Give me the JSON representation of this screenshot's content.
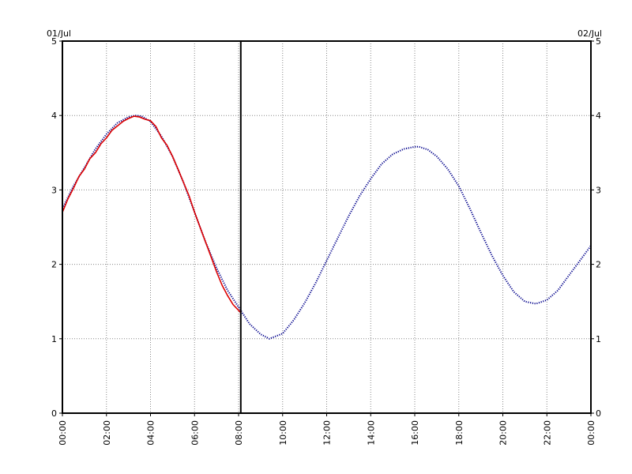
{
  "chart_data": {
    "type": "line",
    "title": "",
    "xlabel": "",
    "ylabel": "",
    "start_date_label": "01/Jul",
    "end_date_label": "02/Jul",
    "x_unit": "hours",
    "xlim": [
      0,
      24
    ],
    "ylim": [
      0,
      5
    ],
    "grid": true,
    "x_ticks": [
      {
        "value": 0,
        "label": "00:00"
      },
      {
        "value": 2,
        "label": "02:00"
      },
      {
        "value": 4,
        "label": "04:00"
      },
      {
        "value": 6,
        "label": "06:00"
      },
      {
        "value": 8,
        "label": "08:00"
      },
      {
        "value": 10,
        "label": "10:00"
      },
      {
        "value": 12,
        "label": "12:00"
      },
      {
        "value": 14,
        "label": "14:00"
      },
      {
        "value": 16,
        "label": "16:00"
      },
      {
        "value": 18,
        "label": "18:00"
      },
      {
        "value": 20,
        "label": "20:00"
      },
      {
        "value": 22,
        "label": "22:00"
      },
      {
        "value": 24,
        "label": "00:00"
      }
    ],
    "y_ticks": [
      {
        "value": 0,
        "label": "0"
      },
      {
        "value": 1,
        "label": "1"
      },
      {
        "value": 2,
        "label": "2"
      },
      {
        "value": 3,
        "label": "3"
      },
      {
        "value": 4,
        "label": "4"
      },
      {
        "value": 5,
        "label": "5"
      }
    ],
    "current_time_marker": 8.1,
    "series": [
      {
        "color": "#00008b",
        "style": "dotted",
        "x": [
          0,
          0.5,
          1,
          1.5,
          2,
          2.5,
          3,
          3.3,
          3.6,
          4,
          4.5,
          5,
          5.5,
          6,
          6.5,
          7,
          7.5,
          8.1,
          8.5,
          9,
          9.4,
          10,
          10.5,
          11,
          11.5,
          12,
          12.5,
          13,
          13.5,
          14,
          14.5,
          15,
          15.5,
          16,
          16.2,
          16.6,
          17,
          17.5,
          18,
          18.5,
          19,
          19.5,
          20,
          20.5,
          21,
          21.5,
          22,
          22.5,
          23,
          23.5,
          24
        ],
        "y": [
          2.75,
          3.05,
          3.3,
          3.55,
          3.75,
          3.9,
          3.98,
          4.0,
          3.99,
          3.92,
          3.72,
          3.45,
          3.1,
          2.7,
          2.3,
          1.95,
          1.65,
          1.38,
          1.2,
          1.06,
          1.0,
          1.07,
          1.25,
          1.48,
          1.75,
          2.05,
          2.35,
          2.65,
          2.92,
          3.15,
          3.35,
          3.48,
          3.55,
          3.58,
          3.58,
          3.54,
          3.45,
          3.28,
          3.05,
          2.75,
          2.43,
          2.12,
          1.85,
          1.63,
          1.5,
          1.47,
          1.52,
          1.65,
          1.85,
          2.05,
          2.25
        ]
      },
      {
        "color": "#dd0000",
        "style": "solid",
        "x": [
          0,
          0.25,
          0.5,
          0.75,
          1,
          1.25,
          1.5,
          1.75,
          2,
          2.25,
          2.5,
          2.75,
          3,
          3.25,
          3.5,
          3.75,
          4,
          4.25,
          4.5,
          4.75,
          5,
          5.25,
          5.5,
          5.75,
          6,
          6.25,
          6.5,
          6.75,
          7,
          7.25,
          7.5,
          7.75,
          8.1
        ],
        "y": [
          2.7,
          2.88,
          3.02,
          3.18,
          3.28,
          3.42,
          3.5,
          3.62,
          3.7,
          3.8,
          3.86,
          3.92,
          3.96,
          3.99,
          3.98,
          3.95,
          3.93,
          3.85,
          3.7,
          3.6,
          3.45,
          3.28,
          3.1,
          2.92,
          2.7,
          2.5,
          2.3,
          2.1,
          1.9,
          1.72,
          1.58,
          1.46,
          1.35
        ]
      }
    ]
  }
}
